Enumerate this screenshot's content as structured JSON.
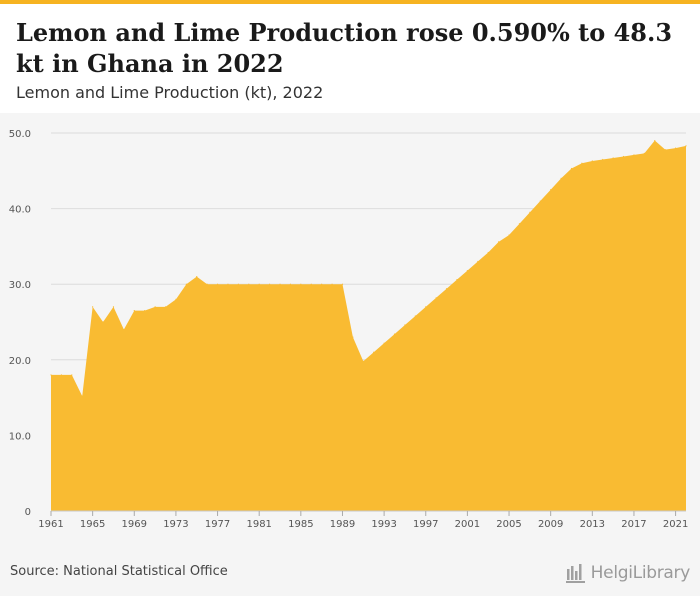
{
  "header": {
    "title": "Lemon and Lime Production rose 0.590% to 48.3 kt in Ghana in 2022",
    "subtitle": "Lemon and Lime Production (kt), 2022"
  },
  "footer": {
    "source": "Source: National Statistical Office",
    "brand": "HelgiLibrary"
  },
  "colors": {
    "accent": "#f6b321",
    "area": "#f9bb32",
    "background": "#f5f5f5"
  },
  "chart_data": {
    "type": "area",
    "title": "Lemon and Lime Production (kt), 2022",
    "xlabel": "",
    "ylabel": "",
    "ylim": [
      0,
      50
    ],
    "xlim": [
      1961,
      2022
    ],
    "grid": true,
    "yticks": [
      {
        "value": 0,
        "label": "0"
      },
      {
        "value": 10,
        "label": "10.0"
      },
      {
        "value": 20,
        "label": "20.0"
      },
      {
        "value": 30,
        "label": "30.0"
      },
      {
        "value": 40,
        "label": "40.0"
      },
      {
        "value": 50,
        "label": "50.0"
      }
    ],
    "xticks": [
      1961,
      1965,
      1969,
      1973,
      1977,
      1981,
      1985,
      1989,
      1993,
      1997,
      2001,
      2005,
      2009,
      2013,
      2017,
      2021
    ],
    "series": [
      {
        "x": [
          1961,
          1962,
          1963,
          1964,
          1965,
          1966,
          1967,
          1968,
          1969,
          1970,
          1971,
          1972,
          1973,
          1974,
          1975,
          1976,
          1977,
          1978,
          1979,
          1980,
          1981,
          1982,
          1983,
          1984,
          1985,
          1986,
          1987,
          1988,
          1989,
          1990,
          1991,
          1992,
          1993,
          1994,
          1995,
          1996,
          1997,
          1998,
          1999,
          2000,
          2001,
          2002,
          2003,
          2004,
          2005,
          2006,
          2007,
          2008,
          2009,
          2010,
          2011,
          2012,
          2013,
          2014,
          2015,
          2016,
          2017,
          2018,
          2019,
          2020,
          2021,
          2022
        ],
        "values": [
          18.0,
          18.0,
          18.0,
          15.2,
          27.0,
          25.0,
          27.0,
          24.0,
          26.5,
          26.5,
          27.0,
          27.0,
          28.0,
          30.0,
          31.0,
          30.0,
          30.0,
          30.0,
          30.0,
          30.0,
          30.0,
          30.0,
          30.0,
          30.0,
          30.0,
          30.0,
          30.0,
          30.0,
          30.0,
          23.0,
          19.8,
          21.0,
          22.2,
          23.4,
          24.6,
          25.8,
          27.0,
          28.2,
          29.4,
          30.6,
          31.8,
          33.0,
          34.2,
          35.6,
          36.5,
          38.0,
          39.5,
          41.0,
          42.5,
          44.0,
          45.3,
          46.0,
          46.3,
          46.5,
          46.7,
          46.9,
          47.1,
          47.3,
          49.0,
          47.8,
          48.0,
          48.3
        ]
      }
    ]
  }
}
